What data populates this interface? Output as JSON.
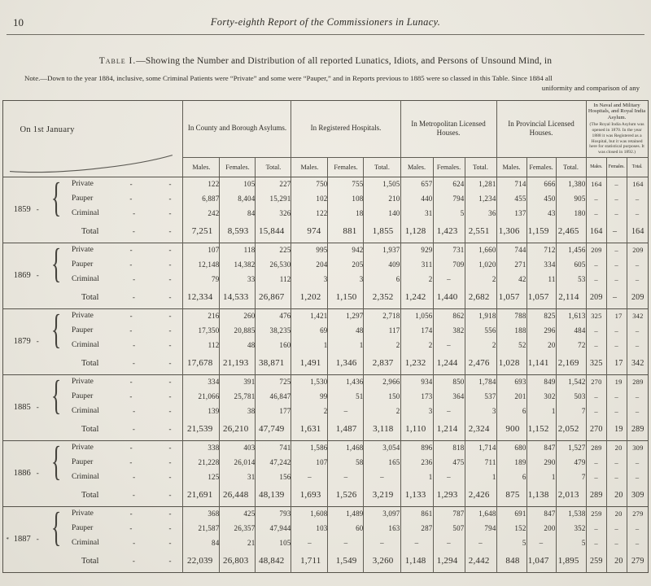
{
  "page": {
    "number": "10",
    "running_title": "Forty-eighth Report of the Commissioners in Lunacy.",
    "table_title_label": "Table I.",
    "table_title_rest": "—Showing the Number and Distribution of all reported Lunatics, Idiots, and Persons of Unsound Mind, in",
    "note_line1": "Note.—Down to the year 1884, inclusive, some Criminal Patients were “Private” and some were “Pauper,” and in Reports previous to 1885 were so classed in this Table.  Since 1884 all",
    "note_line2": "uniformity and comparison of any"
  },
  "colors": {
    "paper": "#e9e6dd",
    "ink": "#2e2c27",
    "rule": "#55524a"
  },
  "table": {
    "corner_header": "On 1st January",
    "dash": "-",
    "empty": "–",
    "brace": "{",
    "sub_headers": [
      "Males.",
      "Females.",
      "Total."
    ],
    "col_groups": [
      {
        "title": "In County and Borough Asylums."
      },
      {
        "title": "In Registered Hospitals."
      },
      {
        "title": "In Metropolitan Licensed Houses."
      },
      {
        "title": "In Provincial Licensed Houses."
      },
      {
        "title": "In Naval and Military Hospitals, and Royal India Asylum.",
        "note": "(The Royal India Asylum was opened in 1870.  In the year 1888 it was Registered as a Hospital, but it was retained here for statistical purposes.  It was closed in 1892.)"
      }
    ],
    "row_labels": [
      "Private",
      "Pauper",
      "Criminal"
    ],
    "total_label": "Total",
    "groups": [
      {
        "year": "1859",
        "marker": "",
        "rows": [
          [
            "122",
            "105",
            "227",
            "750",
            "755",
            "1,505",
            "657",
            "624",
            "1,281",
            "714",
            "666",
            "1,380",
            "164",
            "–",
            "164"
          ],
          [
            "6,887",
            "8,404",
            "15,291",
            "102",
            "108",
            "210",
            "440",
            "794",
            "1,234",
            "455",
            "450",
            "905",
            "–",
            "–",
            "–"
          ],
          [
            "242",
            "84",
            "326",
            "122",
            "18",
            "140",
            "31",
            "5",
            "36",
            "137",
            "43",
            "180",
            "–",
            "–",
            "–"
          ]
        ],
        "total": [
          "7,251",
          "8,593",
          "15,844",
          "974",
          "881",
          "1,855",
          "1,128",
          "1,423",
          "2,551",
          "1,306",
          "1,159",
          "2,465",
          "164",
          "–",
          "164"
        ]
      },
      {
        "year": "1869",
        "marker": "",
        "rows": [
          [
            "107",
            "118",
            "225",
            "995",
            "942",
            "1,937",
            "929",
            "731",
            "1,660",
            "744",
            "712",
            "1,456",
            "209",
            "–",
            "209"
          ],
          [
            "12,148",
            "14,382",
            "26,530",
            "204",
            "205",
            "409",
            "311",
            "709",
            "1,020",
            "271",
            "334",
            "605",
            "–",
            "–",
            "–"
          ],
          [
            "79",
            "33",
            "112",
            "3",
            "3",
            "6",
            "2",
            "–",
            "2",
            "42",
            "11",
            "53",
            "–",
            "–",
            "–"
          ]
        ],
        "total": [
          "12,334",
          "14,533",
          "26,867",
          "1,202",
          "1,150",
          "2,352",
          "1,242",
          "1,440",
          "2,682",
          "1,057",
          "1,057",
          "2,114",
          "209",
          "–",
          "209"
        ]
      },
      {
        "year": "1879",
        "marker": "",
        "rows": [
          [
            "216",
            "260",
            "476",
            "1,421",
            "1,297",
            "2,718",
            "1,056",
            "862",
            "1,918",
            "788",
            "825",
            "1,613",
            "325",
            "17",
            "342"
          ],
          [
            "17,350",
            "20,885",
            "38,235",
            "69",
            "48",
            "117",
            "174",
            "382",
            "556",
            "188",
            "296",
            "484",
            "–",
            "–",
            "–"
          ],
          [
            "112",
            "48",
            "160",
            "1",
            "1",
            "2",
            "2",
            "–",
            "2",
            "52",
            "20",
            "72",
            "–",
            "–",
            "–"
          ]
        ],
        "total": [
          "17,678",
          "21,193",
          "38,871",
          "1,491",
          "1,346",
          "2,837",
          "1,232",
          "1,244",
          "2,476",
          "1,028",
          "1,141",
          "2,169",
          "325",
          "17",
          "342"
        ]
      },
      {
        "year": "1885",
        "marker": "",
        "rows": [
          [
            "334",
            "391",
            "725",
            "1,530",
            "1,436",
            "2,966",
            "934",
            "850",
            "1,784",
            "693",
            "849",
            "1,542",
            "270",
            "19",
            "289"
          ],
          [
            "21,066",
            "25,781",
            "46,847",
            "99",
            "51",
            "150",
            "173",
            "364",
            "537",
            "201",
            "302",
            "503",
            "–",
            "–",
            "–"
          ],
          [
            "139",
            "38",
            "177",
            "2",
            "–",
            "2",
            "3",
            "–",
            "3",
            "6",
            "1",
            "7",
            "–",
            "–",
            "–"
          ]
        ],
        "total": [
          "21,539",
          "26,210",
          "47,749",
          "1,631",
          "1,487",
          "3,118",
          "1,110",
          "1,214",
          "2,324",
          "900",
          "1,152",
          "2,052",
          "270",
          "19",
          "289"
        ]
      },
      {
        "year": "1886",
        "marker": "",
        "rows": [
          [
            "338",
            "403",
            "741",
            "1,586",
            "1,468",
            "3,054",
            "896",
            "818",
            "1,714",
            "680",
            "847",
            "1,527",
            "289",
            "20",
            "309"
          ],
          [
            "21,228",
            "26,014",
            "47,242",
            "107",
            "58",
            "165",
            "236",
            "475",
            "711",
            "189",
            "290",
            "479",
            "–",
            "–",
            "–"
          ],
          [
            "125",
            "31",
            "156",
            "–",
            "–",
            "–",
            "1",
            "–",
            "1",
            "6",
            "1",
            "7",
            "–",
            "–",
            "–"
          ]
        ],
        "total": [
          "21,691",
          "26,448",
          "48,139",
          "1,693",
          "1,526",
          "3,219",
          "1,133",
          "1,293",
          "2,426",
          "875",
          "1,138",
          "2,013",
          "289",
          "20",
          "309"
        ]
      },
      {
        "year": "1887",
        "marker": "*",
        "rows": [
          [
            "368",
            "425",
            "793",
            "1,608",
            "1,489",
            "3,097",
            "861",
            "787",
            "1,648",
            "691",
            "847",
            "1,538",
            "259",
            "20",
            "279"
          ],
          [
            "21,587",
            "26,357",
            "47,944",
            "103",
            "60",
            "163",
            "287",
            "507",
            "794",
            "152",
            "200",
            "352",
            "–",
            "–",
            "–"
          ],
          [
            "84",
            "21",
            "105",
            "–",
            "–",
            "–",
            "–",
            "–",
            "–",
            "5",
            "–",
            "5",
            "–",
            "–",
            "–"
          ]
        ],
        "total": [
          "22,039",
          "26,803",
          "48,842",
          "1,711",
          "1,549",
          "3,260",
          "1,148",
          "1,294",
          "2,442",
          "848",
          "1,047",
          "1,895",
          "259",
          "20",
          "279"
        ]
      }
    ]
  }
}
